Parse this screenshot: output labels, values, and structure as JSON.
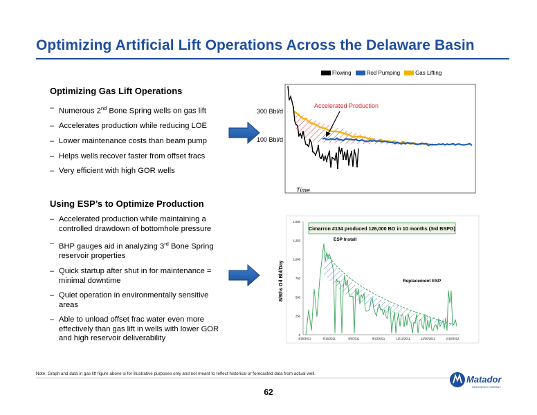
{
  "slide": {
    "title": "Optimizing Artificial Lift Operations Across the Delaware Basin",
    "page_number": "62",
    "note": "Note: Graph and data in gas lift figure above is for illustrative purposes only and not meant to reflect historical or forecasted data from actual well.",
    "logo_text": "Matador",
    "logo_sub": "RESOURCES COMPANY"
  },
  "gas_lift": {
    "heading": "Optimizing Gas Lift Operations",
    "bullets": [
      {
        "pre": "Numerous 2",
        "sup": "nd",
        "post": " Bone Spring wells on gas lift"
      },
      {
        "pre": "Accelerates production while reducing LOE",
        "sup": "",
        "post": ""
      },
      {
        "pre": "Lower maintenance costs than beam pump",
        "sup": "",
        "post": ""
      },
      {
        "pre": "Helps wells recover faster from offset fracs",
        "sup": "",
        "post": ""
      },
      {
        "pre": "Very efficient with high GOR wells",
        "sup": "",
        "post": ""
      }
    ]
  },
  "esp": {
    "heading": "Using ESP’s to Optimize Production",
    "bullets": [
      {
        "pre": "Accelerated production while maintaining a controlled drawdown of bottomhole pressure",
        "sup": "",
        "post": ""
      },
      {
        "pre": "BHP gauges aid in analyzing 3",
        "sup": "rd",
        "post": " Bone Spring reservoir properties"
      },
      {
        "pre": "Quick startup after shut in for maintenance = minimal downtime",
        "sup": "",
        "post": ""
      },
      {
        "pre": "Quiet operation in environmentally sensitive areas",
        "sup": "",
        "post": ""
      },
      {
        "pre": "Able to unload offset frac water even more effectively than gas lift in wells with lower GOR and high reservoir deliverability",
        "sup": "",
        "post": ""
      }
    ]
  },
  "chart_data": [
    {
      "type": "line",
      "title": "",
      "legend": [
        {
          "name": "Flowing",
          "color": "#000000"
        },
        {
          "name": "Rod Pumping",
          "color": "#1f5fb4"
        },
        {
          "name": "Gas Lifting",
          "color": "#f2b400"
        }
      ],
      "legend_position": "top",
      "xlabel": "Time",
      "ylabel": "",
      "y_reference_labels": [
        "300 Bbl/d",
        "100 Bbl/d"
      ],
      "annotation": "Accelerated Production",
      "annotation_color": "#d9262b",
      "grid": false
    },
    {
      "type": "line",
      "title": "Cimarron #134 produced 126,000 BO in 10 months (3rd BSPG)",
      "ylabel": "8/8ths Oil Bbl/Day",
      "yticks": [
        "0",
        "250",
        "500",
        "750",
        "1,000",
        "1,250",
        "1,500"
      ],
      "xticks": [
        "4/26/2011",
        "6/15/2011",
        "8/4/2011",
        "9/23/2011",
        "11/12/2011",
        "12/30/2011",
        "2/18/2012"
      ],
      "annotations": [
        "ESP Install",
        "Replacement ESP"
      ],
      "series": [
        {
          "color": "#3aa65a"
        }
      ],
      "grid": false
    }
  ]
}
